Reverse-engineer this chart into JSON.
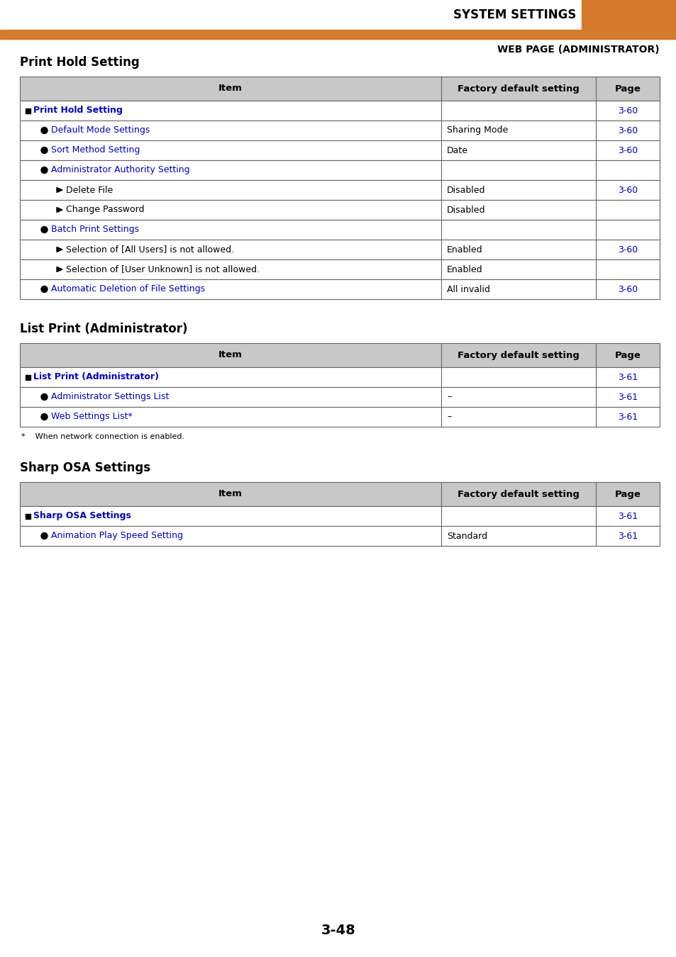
{
  "page_header_title": "SYSTEM SETTINGS",
  "page_subheader": "WEB PAGE (ADMINISTRATOR)",
  "orange_color": "#D47A2A",
  "blue_link_color": "#0000CC",
  "header_bg": "#C8C8C8",
  "table_border": "#666666",
  "section1_title": "Print Hold Setting",
  "section2_title": "List Print (Administrator)",
  "section3_title": "Sharp OSA Settings",
  "footnote": "*    When network connection is enabled.",
  "page_number": "3-48",
  "col_headers": [
    "Item",
    "Factory default setting",
    "Page"
  ],
  "table1_rows": [
    {
      "indent": 0,
      "type": "square",
      "item": "Print Hold Setting",
      "item_blue": true,
      "default": "",
      "page": "3-60"
    },
    {
      "indent": 1,
      "type": "circle",
      "item": "Default Mode Settings",
      "item_blue": true,
      "default": "Sharing Mode",
      "page": "3-60"
    },
    {
      "indent": 1,
      "type": "circle",
      "item": "Sort Method Setting",
      "item_blue": true,
      "default": "Date",
      "page": "3-60"
    },
    {
      "indent": 1,
      "type": "circle",
      "item": "Administrator Authority Setting",
      "item_blue": true,
      "default": "",
      "page": ""
    },
    {
      "indent": 2,
      "type": "arrow",
      "item": "Delete File",
      "item_blue": false,
      "default": "Disabled",
      "page": "3-60"
    },
    {
      "indent": 2,
      "type": "arrow",
      "item": "Change Password",
      "item_blue": false,
      "default": "Disabled",
      "page": ""
    },
    {
      "indent": 1,
      "type": "circle",
      "item": "Batch Print Settings",
      "item_blue": true,
      "default": "",
      "page": ""
    },
    {
      "indent": 2,
      "type": "arrow",
      "item": "Selection of [All Users] is not allowed.",
      "item_blue": false,
      "default": "Enabled",
      "page": "3-60"
    },
    {
      "indent": 2,
      "type": "arrow",
      "item": "Selection of [User Unknown] is not allowed.",
      "item_blue": false,
      "default": "Enabled",
      "page": ""
    },
    {
      "indent": 1,
      "type": "circle",
      "item": "Automatic Deletion of File Settings",
      "item_blue": true,
      "default": "All invalid",
      "page": "3-60"
    }
  ],
  "table2_rows": [
    {
      "indent": 0,
      "type": "square",
      "item": "List Print (Administrator)",
      "item_blue": true,
      "default": "",
      "page": "3-61"
    },
    {
      "indent": 1,
      "type": "circle",
      "item": "Administrator Settings List",
      "item_blue": true,
      "default": "–",
      "page": "3-61"
    },
    {
      "indent": 1,
      "type": "circle",
      "item": "Web Settings List*",
      "item_blue": true,
      "default": "–",
      "page": "3-61"
    }
  ],
  "table3_rows": [
    {
      "indent": 0,
      "type": "square",
      "item": "Sharp OSA Settings",
      "item_blue": true,
      "default": "",
      "page": "3-61"
    },
    {
      "indent": 1,
      "type": "circle",
      "item": "Animation Play Speed Setting",
      "item_blue": true,
      "default": "Standard",
      "page": "3-61"
    }
  ]
}
